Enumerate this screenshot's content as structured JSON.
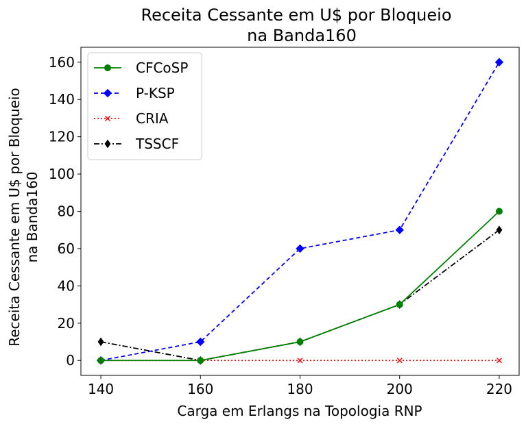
{
  "chart_data": {
    "type": "line",
    "title_lines": [
      "Receita Cessante em U$ por Bloqueio",
      "na Banda160"
    ],
    "xlabel": "Carga em Erlangs na Topologia RNP",
    "ylabel_lines": [
      "Receita Cessante em U$ por Bloqueio",
      "na Banda160"
    ],
    "x": [
      140,
      160,
      180,
      200,
      220
    ],
    "xticks": [
      "140",
      "160",
      "180",
      "200",
      "220"
    ],
    "yticks": [
      "0",
      "20",
      "40",
      "60",
      "80",
      "100",
      "120",
      "140",
      "160"
    ],
    "xlim": [
      136,
      224
    ],
    "ylim": [
      -8,
      168
    ],
    "grid": false,
    "legend_position": "upper-left",
    "series": [
      {
        "name": "CFCoSP",
        "values": [
          0,
          0,
          10,
          30,
          80
        ],
        "color": "#008000",
        "linestyle": "solid",
        "marker": "circle"
      },
      {
        "name": "P-KSP",
        "values": [
          0,
          10,
          60,
          70,
          160
        ],
        "color": "#0000ff",
        "linestyle": "dashed",
        "marker": "diamond"
      },
      {
        "name": "CRIA",
        "values": [
          0,
          0,
          0,
          0,
          0
        ],
        "color": "#ff0000",
        "linestyle": "dotted",
        "marker": "x"
      },
      {
        "name": "TSSCF",
        "values": [
          10,
          0,
          10,
          30,
          70
        ],
        "color": "#000000",
        "linestyle": "dashdot",
        "marker": "thin-diamond"
      }
    ]
  }
}
